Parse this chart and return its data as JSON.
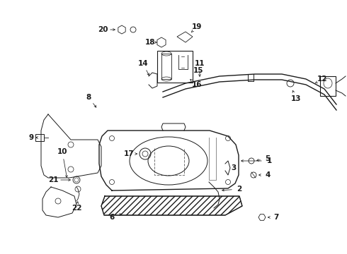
{
  "bg_color": "#ffffff",
  "line_color": "#1a1a1a",
  "figsize": [
    4.9,
    3.6
  ],
  "dpi": 100,
  "parts": {
    "tank": {
      "outline_x": [
        155,
        148,
        142,
        140,
        140,
        145,
        155,
        295,
        320,
        330,
        335,
        335,
        330,
        320,
        155
      ],
      "outline_y": [
        270,
        262,
        250,
        230,
        205,
        192,
        185,
        185,
        192,
        205,
        220,
        245,
        258,
        265,
        270
      ]
    },
    "skid": {
      "x": [
        148,
        143,
        148,
        315,
        340,
        335,
        148
      ],
      "y": [
        178,
        168,
        160,
        160,
        168,
        178,
        178
      ]
    },
    "pipe_upper": [
      [
        215,
        255,
        300,
        355,
        395,
        430,
        455,
        475
      ],
      [
        138,
        128,
        115,
        108,
        108,
        115,
        128,
        148
      ]
    ],
    "pipe_lower": [
      [
        215,
        255,
        300,
        355,
        395,
        430,
        455,
        475
      ],
      [
        144,
        134,
        121,
        114,
        114,
        121,
        134,
        154
      ]
    ]
  },
  "label_positions": {
    "1": [
      372,
      228,
      335,
      228
    ],
    "2": [
      320,
      270,
      310,
      260
    ],
    "3": [
      330,
      235,
      318,
      240
    ],
    "4": [
      370,
      248,
      355,
      248
    ],
    "5": [
      370,
      228,
      352,
      228
    ],
    "6": [
      165,
      308,
      178,
      300
    ],
    "7": [
      388,
      308,
      372,
      308
    ],
    "8": [
      130,
      142,
      148,
      158
    ],
    "9": [
      52,
      195,
      68,
      195
    ],
    "10": [
      92,
      222,
      108,
      215
    ],
    "11": [
      278,
      95,
      278,
      112
    ],
    "12": [
      445,
      115,
      432,
      122
    ],
    "13": [
      408,
      138,
      400,
      128
    ],
    "14": [
      208,
      95,
      215,
      112
    ],
    "15": [
      262,
      148,
      250,
      155
    ],
    "16": [
      255,
      170,
      245,
      162
    ],
    "17": [
      185,
      218,
      200,
      218
    ],
    "18": [
      218,
      62,
      230,
      72
    ],
    "19": [
      262,
      38,
      252,
      48
    ],
    "20": [
      148,
      42,
      162,
      48
    ],
    "21": [
      88,
      258,
      105,
      255
    ],
    "22": [
      108,
      280,
      108,
      268
    ]
  }
}
